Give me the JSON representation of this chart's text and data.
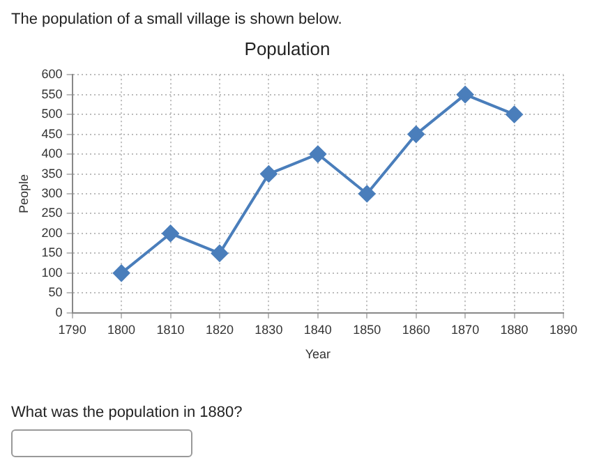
{
  "chart_data": {
    "type": "line",
    "title": "Population",
    "xlabel": "Year",
    "ylabel": "People",
    "annotations": [
      "The population of a small village is shown below.",
      "What was the population in 1880?"
    ],
    "x": [
      1800,
      1810,
      1820,
      1830,
      1840,
      1850,
      1860,
      1870,
      1880
    ],
    "series": [
      {
        "color": "#4a7ebb",
        "values": [
          100,
          200,
          150,
          350,
          400,
          300,
          450,
          550,
          500
        ]
      }
    ],
    "xlim": [
      1790,
      1890
    ],
    "xticks": [
      1790,
      1800,
      1810,
      1820,
      1830,
      1840,
      1850,
      1860,
      1870,
      1880,
      1890
    ],
    "ylim": [
      0,
      600
    ],
    "yticks": [
      0,
      50,
      100,
      150,
      200,
      250,
      300,
      350,
      400,
      450,
      500,
      550,
      600
    ],
    "grid": true,
    "legend": false,
    "marker": "diamond",
    "line_style": "solid"
  }
}
